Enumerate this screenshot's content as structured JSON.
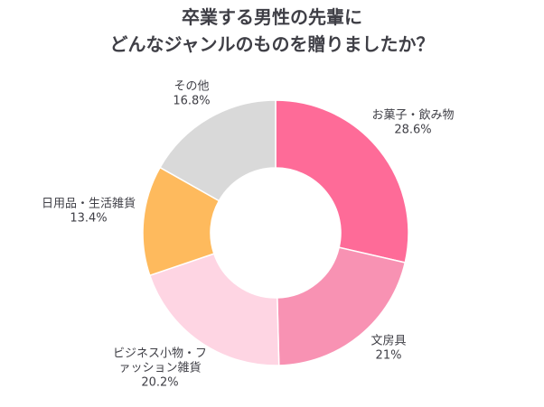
{
  "chart_data": {
    "type": "pie",
    "title_lines": [
      "卒業する男性の先輩に",
      "どんなジャンルのものを贈りましたか？"
    ],
    "categories": [
      "お菓子・飲み物",
      "文房具",
      "ビジネス小物・ファッション雑貨",
      "日用品・生活雑貨",
      "その他"
    ],
    "values": [
      28.6,
      21,
      20.2,
      13.4,
      16.8
    ],
    "value_labels": [
      "28.6%",
      "21%",
      "20.2%",
      "13.4%",
      "16.8%"
    ],
    "label_lines": [
      [
        "お菓子・飲み物"
      ],
      [
        "文房具"
      ],
      [
        "ビジネス小物・フ",
        "ァッション雑貨"
      ],
      [
        "日用品・生活雑貨"
      ],
      [
        "その他"
      ]
    ],
    "colors": [
      "#fe6b98",
      "#f892b3",
      "#fed5e3",
      "#feba5d",
      "#d9d9d9"
    ],
    "donut": true,
    "start": "top",
    "direction": "clockwise",
    "legend": "none"
  }
}
